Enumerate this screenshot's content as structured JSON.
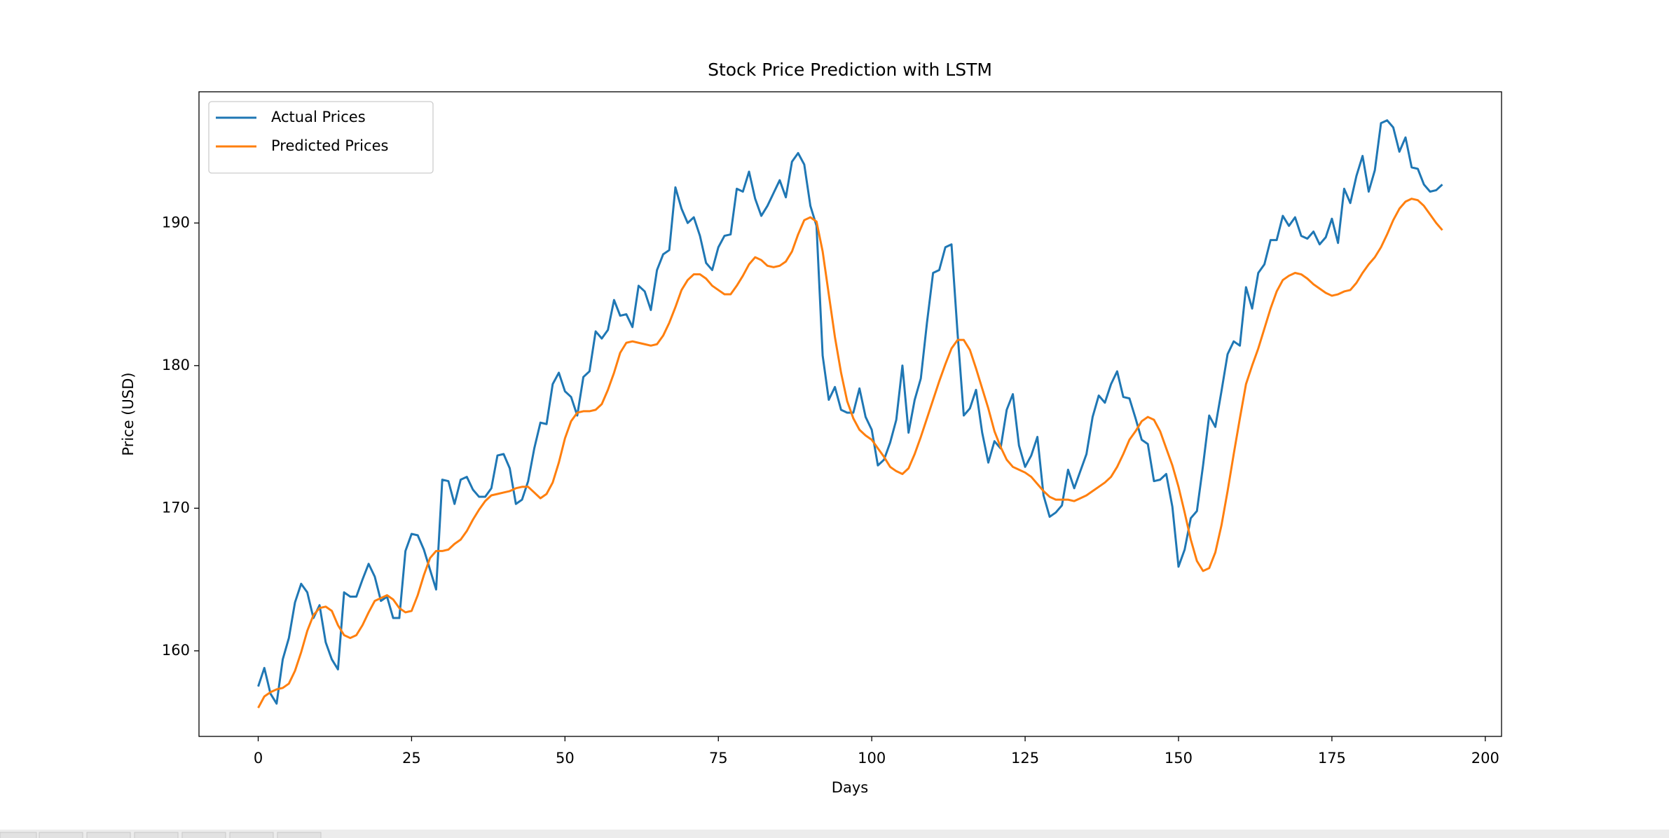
{
  "chart_data": {
    "type": "line",
    "title": "Stock Price Prediction with LSTM",
    "xlabel": "Days",
    "ylabel": "Price (USD)",
    "legend": "upper left",
    "grid": false,
    "xlim": [
      -9.65,
      202.65
    ],
    "ylim": [
      154.0,
      199.2
    ],
    "xticks": [
      0,
      25,
      50,
      75,
      100,
      125,
      150,
      175,
      200
    ],
    "yticks": [
      160,
      170,
      180,
      190
    ],
    "x": [
      0,
      1,
      2,
      3,
      4,
      5,
      6,
      7,
      8,
      9,
      10,
      11,
      12,
      13,
      14,
      15,
      16,
      17,
      18,
      19,
      20,
      21,
      22,
      23,
      24,
      25,
      26,
      27,
      28,
      29,
      30,
      31,
      32,
      33,
      34,
      35,
      36,
      37,
      38,
      39,
      40,
      41,
      42,
      43,
      44,
      45,
      46,
      47,
      48,
      49,
      50,
      51,
      52,
      53,
      54,
      55,
      56,
      57,
      58,
      59,
      60,
      61,
      62,
      63,
      64,
      65,
      66,
      67,
      68,
      69,
      70,
      71,
      72,
      73,
      74,
      75,
      76,
      77,
      78,
      79,
      80,
      81,
      82,
      83,
      84,
      85,
      86,
      87,
      88,
      89,
      90,
      91,
      92,
      93,
      94,
      95,
      96,
      97,
      98,
      99,
      100,
      101,
      102,
      103,
      104,
      105,
      106,
      107,
      108,
      109,
      110,
      111,
      112,
      113,
      114,
      115,
      116,
      117,
      118,
      119,
      120,
      121,
      122,
      123,
      124,
      125,
      126,
      127,
      128,
      129,
      130,
      131,
      132,
      133,
      134,
      135,
      136,
      137,
      138,
      139,
      140,
      141,
      142,
      143,
      144,
      145,
      146,
      147,
      148,
      149,
      150,
      151,
      152,
      153,
      154,
      155,
      156,
      157,
      158,
      159,
      160,
      161,
      162,
      163,
      164,
      165,
      166,
      167,
      168,
      169,
      170,
      171,
      172,
      173,
      174,
      175,
      176,
      177,
      178,
      179,
      180,
      181,
      182,
      183,
      184,
      185,
      186,
      187,
      188,
      189,
      190,
      191,
      192,
      193
    ],
    "series": [
      {
        "name": "Actual Prices",
        "color": "#1f77b4",
        "values": [
          157.5,
          158.8,
          157.0,
          156.3,
          159.4,
          160.9,
          163.4,
          164.7,
          164.1,
          162.3,
          163.2,
          160.6,
          159.4,
          158.7,
          164.1,
          163.8,
          163.8,
          165.0,
          166.1,
          165.2,
          163.5,
          163.8,
          162.3,
          162.3,
          167.0,
          168.2,
          168.1,
          167.1,
          165.7,
          164.3,
          172.0,
          171.9,
          170.3,
          172.0,
          172.2,
          171.3,
          170.8,
          170.8,
          171.4,
          173.7,
          173.8,
          172.8,
          170.3,
          170.6,
          171.9,
          174.2,
          176.0,
          175.9,
          178.7,
          179.5,
          178.2,
          177.8,
          176.5,
          179.2,
          179.6,
          182.4,
          181.9,
          182.5,
          184.6,
          183.5,
          183.6,
          182.7,
          185.6,
          185.2,
          183.9,
          186.7,
          187.8,
          188.1,
          192.5,
          191.0,
          190.0,
          190.4,
          189.1,
          187.2,
          186.7,
          188.3,
          189.1,
          189.2,
          192.4,
          192.2,
          193.6,
          191.7,
          190.5,
          191.2,
          192.1,
          193.0,
          191.8,
          194.3,
          194.9,
          194.1,
          191.2,
          189.8,
          180.7,
          177.6,
          178.5,
          176.9,
          176.7,
          176.7,
          178.4,
          176.4,
          175.5,
          173.0,
          173.4,
          174.6,
          176.2,
          180.0,
          175.3,
          177.6,
          179.1,
          183.0,
          186.5,
          186.7,
          188.3,
          188.5,
          182.2,
          176.5,
          177.0,
          178.3,
          175.3,
          173.2,
          174.7,
          174.2,
          176.9,
          178.0,
          174.4,
          172.9,
          173.7,
          175.0,
          170.9,
          169.4,
          169.7,
          170.2,
          172.7,
          171.4,
          172.6,
          173.8,
          176.4,
          177.9,
          177.4,
          178.7,
          179.6,
          177.8,
          177.7,
          176.3,
          174.8,
          174.5,
          171.9,
          172.0,
          172.4,
          170.1,
          165.9,
          167.1,
          169.3,
          169.8,
          173.0,
          176.5,
          175.7,
          178.2,
          180.8,
          181.7,
          181.4,
          185.5,
          184.0,
          186.5,
          187.1,
          188.8,
          188.8,
          190.5,
          189.8,
          190.4,
          189.1,
          188.9,
          189.4,
          188.5,
          189.0,
          190.3,
          188.6,
          192.4,
          191.4,
          193.3,
          194.7,
          192.2,
          193.7,
          197.0,
          197.2,
          196.7,
          195.0,
          196.0,
          193.9,
          193.8,
          192.7,
          192.2,
          192.3,
          192.7
        ]
      },
      {
        "name": "Predicted Prices",
        "color": "#ff7f0e",
        "values": [
          156.0,
          156.8,
          157.1,
          157.3,
          157.4,
          157.7,
          158.6,
          159.9,
          161.4,
          162.5,
          163.0,
          163.1,
          162.8,
          161.8,
          161.1,
          160.9,
          161.1,
          161.8,
          162.7,
          163.5,
          163.7,
          163.9,
          163.6,
          163.0,
          162.7,
          162.8,
          163.9,
          165.3,
          166.5,
          167.0,
          167.0,
          167.1,
          167.5,
          167.8,
          168.4,
          169.2,
          169.9,
          170.5,
          170.9,
          171.0,
          171.1,
          171.2,
          171.4,
          171.5,
          171.5,
          171.1,
          170.7,
          171.0,
          171.8,
          173.2,
          174.9,
          176.1,
          176.7,
          176.8,
          176.8,
          176.9,
          177.3,
          178.3,
          179.5,
          180.9,
          181.6,
          181.7,
          181.6,
          181.5,
          181.4,
          181.5,
          182.1,
          183.0,
          184.1,
          185.3,
          186.0,
          186.4,
          186.4,
          186.1,
          185.6,
          185.3,
          185.0,
          185.0,
          185.6,
          186.3,
          187.1,
          187.6,
          187.4,
          187.0,
          186.9,
          187.0,
          187.3,
          188.0,
          189.2,
          190.2,
          190.4,
          190.1,
          188.0,
          185.0,
          182.0,
          179.5,
          177.5,
          176.3,
          175.5,
          175.1,
          174.8,
          174.2,
          173.6,
          172.9,
          172.6,
          172.4,
          172.8,
          173.8,
          175.0,
          176.3,
          177.6,
          178.9,
          180.1,
          181.2,
          181.8,
          181.8,
          181.1,
          179.8,
          178.4,
          177.0,
          175.4,
          174.3,
          173.4,
          172.9,
          172.7,
          172.5,
          172.2,
          171.7,
          171.2,
          170.8,
          170.6,
          170.6,
          170.6,
          170.5,
          170.7,
          170.9,
          171.2,
          171.5,
          171.8,
          172.2,
          172.9,
          173.8,
          174.8,
          175.4,
          176.1,
          176.4,
          176.2,
          175.4,
          174.2,
          173.0,
          171.5,
          169.7,
          167.8,
          166.3,
          165.6,
          165.8,
          166.9,
          168.8,
          171.2,
          173.8,
          176.3,
          178.7,
          180.0,
          181.2,
          182.6,
          184.0,
          185.2,
          186.0,
          186.3,
          186.5,
          186.4,
          186.1,
          185.7,
          185.4,
          185.1,
          184.9,
          185.0,
          185.2,
          185.3,
          185.8,
          186.5,
          187.1,
          187.6,
          188.3,
          189.2,
          190.2,
          191.0,
          191.5,
          191.7,
          191.6,
          191.2,
          190.6,
          190.0,
          189.5
        ]
      }
    ]
  }
}
